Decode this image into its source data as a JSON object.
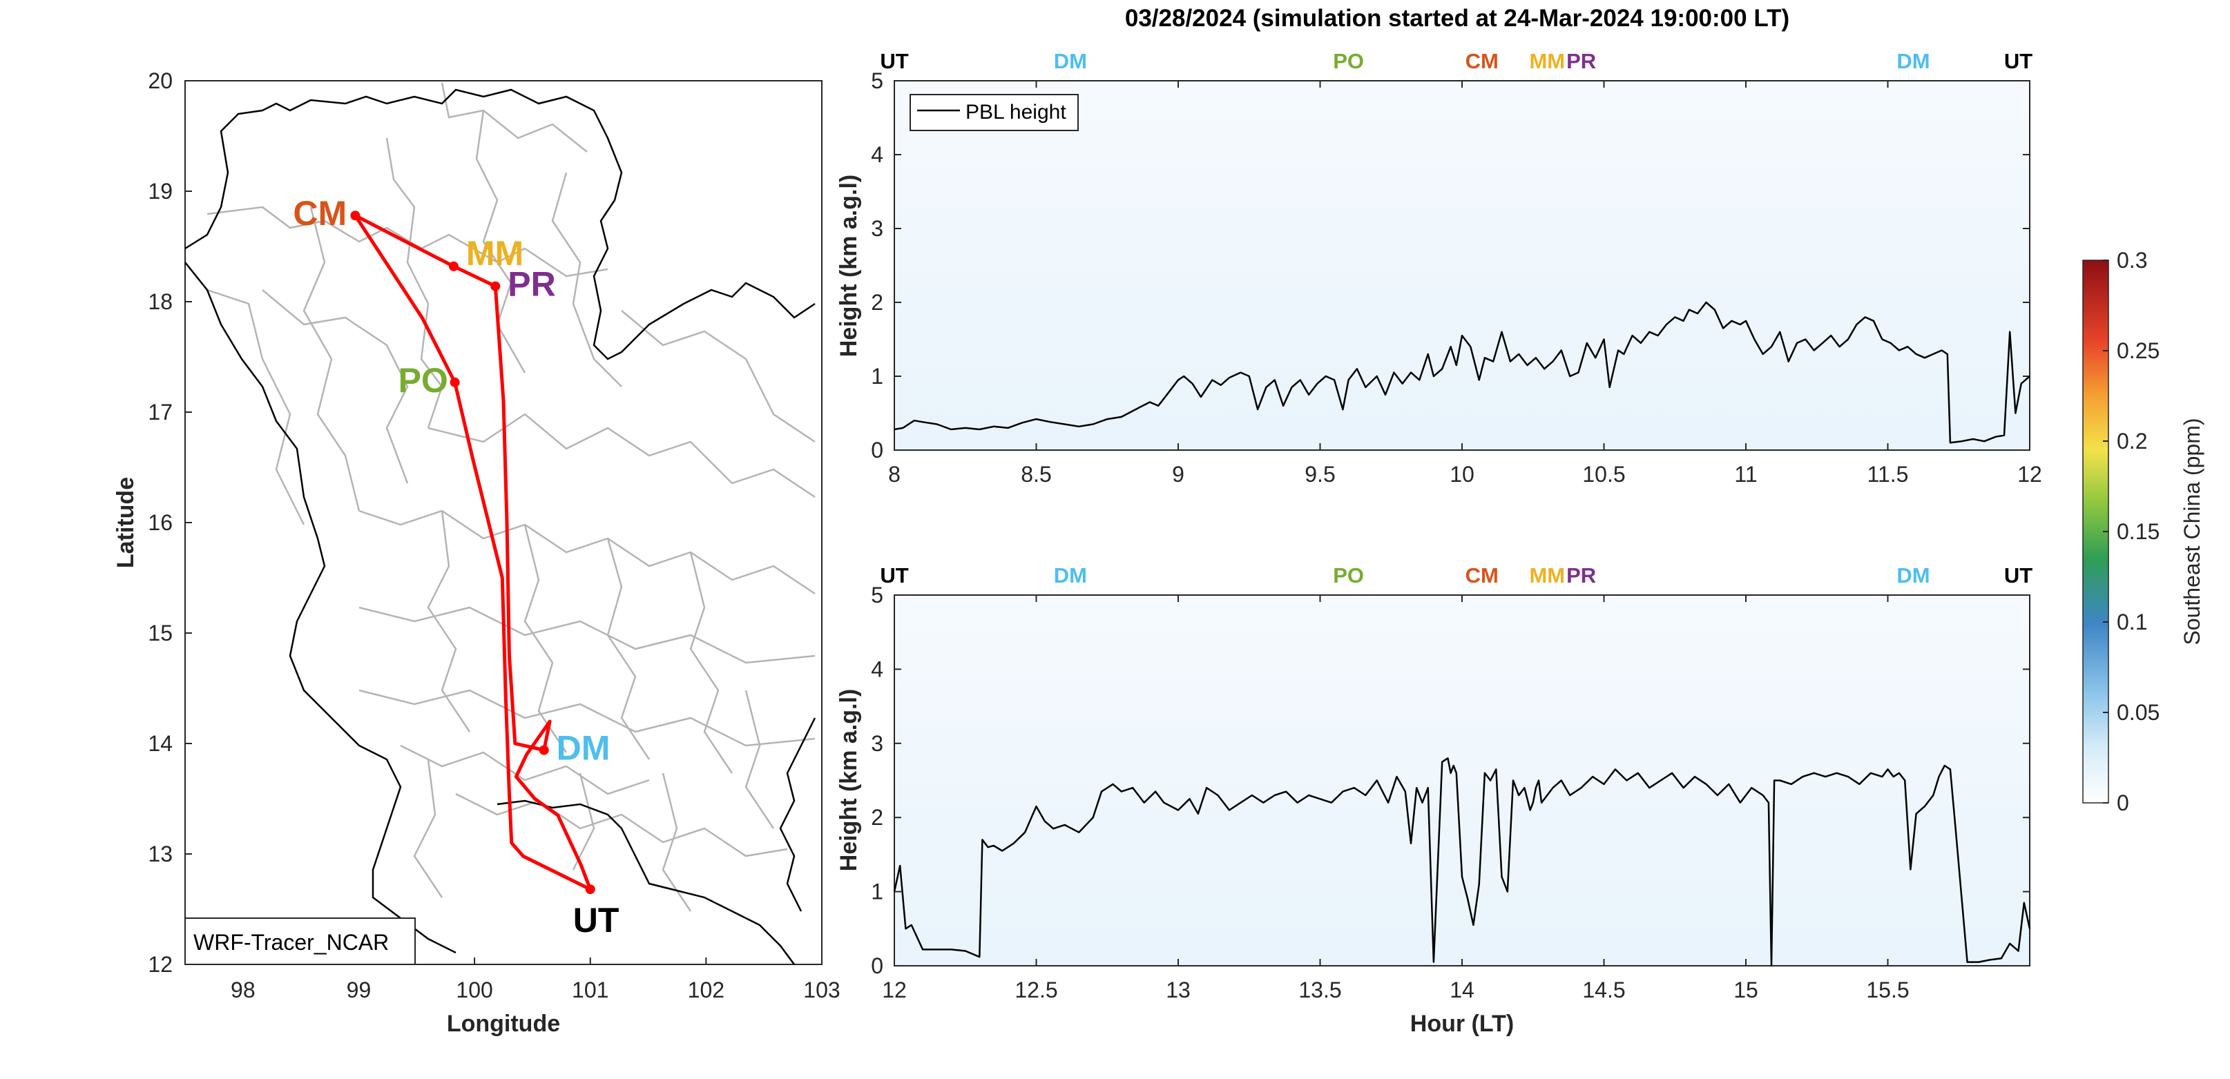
{
  "title": "03/28/2024 (simulation started at 24-Mar-2024 19:00:00 LT)",
  "colors": {
    "UT": "#000000",
    "DM": "#4DBEEE",
    "PO": "#77AC30",
    "CM": "#D95319",
    "MM": "#EDB120",
    "PR": "#7E2F8E",
    "track": "#ff0000",
    "border": "#b4b4b4",
    "coast": "#000000"
  },
  "chart_data": [
    {
      "type": "line",
      "name": "map",
      "xlabel": "Longitude",
      "ylabel": "Latitude",
      "xlim": [
        97.5,
        103
      ],
      "ylim": [
        12,
        20
      ],
      "xticks": [
        "98",
        "99",
        "100",
        "101",
        "102",
        "103"
      ],
      "yticks": [
        "12",
        "13",
        "14",
        "15",
        "16",
        "17",
        "18",
        "19",
        "20"
      ],
      "legend": "WRF-Tracer_NCAR",
      "sites": [
        {
          "label": "CM",
          "lon": 98.97,
          "lat": 18.78
        },
        {
          "label": "MM",
          "lon": 99.82,
          "lat": 18.32
        },
        {
          "label": "PR",
          "lon": 100.18,
          "lat": 18.14
        },
        {
          "label": "PO",
          "lon": 99.83,
          "lat": 17.27
        },
        {
          "label": "DM",
          "lon": 100.6,
          "lat": 13.94
        },
        {
          "label": "UT",
          "lon": 101.0,
          "lat": 12.68
        }
      ],
      "track": [
        {
          "lon": 101.0,
          "lat": 12.68
        },
        {
          "lon": 100.42,
          "lat": 12.98
        },
        {
          "lon": 100.32,
          "lat": 13.1
        },
        {
          "lon": 100.3,
          "lat": 13.55
        },
        {
          "lon": 100.27,
          "lat": 14.4
        },
        {
          "lon": 100.24,
          "lat": 15.5
        },
        {
          "lon": 99.98,
          "lat": 16.6
        },
        {
          "lon": 99.83,
          "lat": 17.27
        },
        {
          "lon": 99.55,
          "lat": 17.85
        },
        {
          "lon": 98.97,
          "lat": 18.78
        },
        {
          "lon": 99.82,
          "lat": 18.32
        },
        {
          "lon": 100.18,
          "lat": 18.14
        },
        {
          "lon": 100.25,
          "lat": 17.1
        },
        {
          "lon": 100.28,
          "lat": 16.0
        },
        {
          "lon": 100.3,
          "lat": 14.8
        },
        {
          "lon": 100.35,
          "lat": 14.0
        },
        {
          "lon": 100.6,
          "lat": 13.94
        },
        {
          "lon": 100.65,
          "lat": 14.2
        },
        {
          "lon": 100.45,
          "lat": 13.9
        },
        {
          "lon": 100.36,
          "lat": 13.7
        },
        {
          "lon": 100.52,
          "lat": 13.5
        },
        {
          "lon": 100.72,
          "lat": 13.35
        },
        {
          "lon": 100.92,
          "lat": 12.9
        },
        {
          "lon": 101.0,
          "lat": 12.68
        }
      ]
    },
    {
      "type": "line",
      "name": "PBL height (8-12 LT)",
      "ylabel": "Height (km a.g.l)",
      "xlim": [
        8,
        12
      ],
      "ylim": [
        0,
        5
      ],
      "xticks": [
        "8",
        "8.5",
        "9",
        "9.5",
        "10",
        "10.5",
        "11",
        "11.5",
        "12"
      ],
      "yticks": [
        "0",
        "1",
        "2",
        "3",
        "4",
        "5"
      ],
      "legend": "PBL height",
      "top_labels": [
        {
          "label": "UT",
          "x": 8.0
        },
        {
          "label": "DM",
          "x": 8.62
        },
        {
          "label": "PO",
          "x": 9.6
        },
        {
          "label": "CM",
          "x": 10.07
        },
        {
          "label": "MM",
          "x": 10.3
        },
        {
          "label": "PR",
          "x": 10.42
        },
        {
          "label": "DM",
          "x": 11.59
        },
        {
          "label": "UT",
          "x": 11.96
        }
      ],
      "series": [
        {
          "x": [
            8.0,
            8.03,
            8.07,
            8.1,
            8.15,
            8.2,
            8.25,
            8.3,
            8.35,
            8.4,
            8.45,
            8.5,
            8.55,
            8.6,
            8.65,
            8.7,
            8.75,
            8.8,
            8.85,
            8.9,
            8.93,
            8.96,
            9.0,
            9.02,
            9.05,
            9.08,
            9.12,
            9.15,
            9.18,
            9.22,
            9.25,
            9.28,
            9.31,
            9.34,
            9.37,
            9.4,
            9.43,
            9.46,
            9.49,
            9.52,
            9.55,
            9.58,
            9.6,
            9.63,
            9.66,
            9.7,
            9.73,
            9.76,
            9.79,
            9.82,
            9.85,
            9.88,
            9.9,
            9.93,
            9.96,
            9.98,
            10.0,
            10.03,
            10.06,
            10.08,
            10.11,
            10.14,
            10.17,
            10.2,
            10.23,
            10.26,
            10.29,
            10.32,
            10.35,
            10.38,
            10.41,
            10.44,
            10.47,
            10.5,
            10.52,
            10.55,
            10.57,
            10.6,
            10.63,
            10.66,
            10.69,
            10.72,
            10.75,
            10.78,
            10.8,
            10.83,
            10.86,
            10.89,
            10.92,
            10.95,
            10.98,
            11.0,
            11.03,
            11.06,
            11.09,
            11.12,
            11.15,
            11.18,
            11.21,
            11.24,
            11.27,
            11.3,
            11.33,
            11.36,
            11.39,
            11.42,
            11.45,
            11.48,
            11.51,
            11.54,
            11.57,
            11.6,
            11.63,
            11.66,
            11.69,
            11.71,
            11.72,
            11.76,
            11.8,
            11.84,
            11.88,
            11.91,
            11.93,
            11.95,
            11.97,
            12.0
          ],
          "values": [
            0.28,
            0.3,
            0.4,
            0.38,
            0.35,
            0.28,
            0.3,
            0.28,
            0.32,
            0.3,
            0.37,
            0.42,
            0.38,
            0.35,
            0.32,
            0.35,
            0.42,
            0.45,
            0.55,
            0.65,
            0.6,
            0.75,
            0.95,
            1.0,
            0.9,
            0.72,
            0.95,
            0.88,
            0.98,
            1.05,
            1.0,
            0.55,
            0.85,
            0.95,
            0.6,
            0.85,
            0.95,
            0.75,
            0.9,
            1.0,
            0.95,
            0.55,
            0.95,
            1.1,
            0.85,
            1.0,
            0.75,
            1.05,
            0.9,
            1.05,
            0.95,
            1.3,
            1.0,
            1.1,
            1.4,
            1.15,
            1.55,
            1.4,
            0.95,
            1.25,
            1.2,
            1.6,
            1.2,
            1.3,
            1.15,
            1.25,
            1.1,
            1.2,
            1.35,
            1.0,
            1.05,
            1.45,
            1.25,
            1.5,
            0.85,
            1.35,
            1.3,
            1.55,
            1.45,
            1.6,
            1.55,
            1.7,
            1.8,
            1.75,
            1.9,
            1.85,
            2.0,
            1.9,
            1.65,
            1.75,
            1.7,
            1.75,
            1.5,
            1.3,
            1.4,
            1.6,
            1.2,
            1.45,
            1.5,
            1.35,
            1.45,
            1.55,
            1.4,
            1.5,
            1.7,
            1.8,
            1.75,
            1.5,
            1.45,
            1.35,
            1.4,
            1.3,
            1.25,
            1.3,
            1.35,
            1.3,
            0.1,
            0.12,
            0.15,
            0.12,
            0.18,
            0.2,
            1.6,
            0.5,
            0.9,
            1.0
          ]
        }
      ]
    },
    {
      "type": "line",
      "name": "PBL height (12-16 LT)",
      "xlabel": "Hour (LT)",
      "ylabel": "Height (km a.g.l)",
      "xlim": [
        12,
        16
      ],
      "ylim": [
        0,
        5
      ],
      "xticks": [
        "12",
        "12.5",
        "13",
        "13.5",
        "14",
        "14.5",
        "15",
        "15.5"
      ],
      "yticks": [
        "0",
        "1",
        "2",
        "3",
        "4",
        "5"
      ],
      "top_labels": [
        {
          "label": "UT",
          "x": 12.0
        },
        {
          "label": "DM",
          "x": 12.62
        },
        {
          "label": "PO",
          "x": 13.6
        },
        {
          "label": "CM",
          "x": 14.07
        },
        {
          "label": "MM",
          "x": 14.3
        },
        {
          "label": "PR",
          "x": 14.42
        },
        {
          "label": "DM",
          "x": 15.59
        },
        {
          "label": "UT",
          "x": 15.96
        }
      ],
      "series": [
        {
          "x": [
            12.0,
            12.02,
            12.04,
            12.06,
            12.1,
            12.15,
            12.2,
            12.25,
            12.3,
            12.31,
            12.33,
            12.35,
            12.38,
            12.42,
            12.46,
            12.5,
            12.53,
            12.56,
            12.6,
            12.65,
            12.7,
            12.73,
            12.77,
            12.8,
            12.84,
            12.88,
            12.92,
            12.95,
            13.0,
            13.04,
            13.07,
            13.1,
            13.14,
            13.18,
            13.22,
            13.26,
            13.3,
            13.34,
            13.38,
            13.42,
            13.46,
            13.5,
            13.54,
            13.58,
            13.62,
            13.66,
            13.7,
            13.74,
            13.77,
            13.8,
            13.82,
            13.84,
            13.86,
            13.88,
            13.9,
            13.93,
            13.95,
            13.96,
            13.97,
            13.98,
            14.0,
            14.02,
            14.04,
            14.06,
            14.08,
            14.1,
            14.12,
            14.14,
            14.16,
            14.18,
            14.2,
            14.22,
            14.24,
            14.25,
            14.26,
            14.27,
            14.28,
            14.3,
            14.32,
            14.35,
            14.38,
            14.42,
            14.46,
            14.5,
            14.54,
            14.58,
            14.62,
            14.66,
            14.7,
            14.74,
            14.78,
            14.82,
            14.86,
            14.9,
            14.94,
            14.98,
            15.02,
            15.06,
            15.08,
            15.09,
            15.1,
            15.12,
            15.16,
            15.2,
            15.24,
            15.28,
            15.32,
            15.36,
            15.4,
            15.44,
            15.48,
            15.5,
            15.52,
            15.54,
            15.56,
            15.58,
            15.6,
            15.63,
            15.66,
            15.68,
            15.7,
            15.72,
            15.74,
            15.78,
            15.82,
            15.86,
            15.9,
            15.93,
            15.96,
            15.98,
            16.0
          ],
          "values": [
            1.0,
            1.35,
            0.5,
            0.55,
            0.22,
            0.22,
            0.22,
            0.2,
            0.12,
            1.7,
            1.6,
            1.62,
            1.55,
            1.65,
            1.8,
            2.15,
            1.95,
            1.85,
            1.9,
            1.8,
            2.0,
            2.35,
            2.45,
            2.35,
            2.4,
            2.2,
            2.35,
            2.2,
            2.1,
            2.25,
            2.05,
            2.4,
            2.3,
            2.1,
            2.2,
            2.3,
            2.2,
            2.3,
            2.35,
            2.2,
            2.3,
            2.25,
            2.2,
            2.35,
            2.4,
            2.3,
            2.5,
            2.2,
            2.55,
            2.35,
            1.65,
            2.4,
            2.2,
            2.4,
            0.05,
            2.75,
            2.8,
            2.6,
            2.7,
            2.6,
            1.2,
            0.9,
            0.55,
            1.1,
            2.6,
            2.5,
            2.65,
            1.2,
            1.0,
            2.5,
            2.3,
            2.4,
            2.1,
            2.2,
            2.4,
            2.5,
            2.2,
            2.3,
            2.4,
            2.5,
            2.3,
            2.4,
            2.55,
            2.45,
            2.65,
            2.5,
            2.6,
            2.4,
            2.5,
            2.6,
            2.4,
            2.55,
            2.45,
            2.3,
            2.45,
            2.2,
            2.4,
            2.3,
            2.2,
            0.0,
            2.5,
            2.5,
            2.45,
            2.55,
            2.6,
            2.55,
            2.6,
            2.55,
            2.45,
            2.6,
            2.55,
            2.65,
            2.55,
            2.6,
            2.5,
            1.3,
            2.05,
            2.15,
            2.3,
            2.55,
            2.7,
            2.65,
            1.8,
            0.05,
            0.05,
            0.08,
            0.1,
            0.3,
            0.2,
            0.85,
            0.5
          ]
        }
      ]
    },
    {
      "type": "heatmap",
      "name": "colorbar",
      "ylabel": "Southeast China (ppm)",
      "ylim": [
        0,
        0.3
      ],
      "yticks": [
        "0",
        "0.05",
        "0.1",
        "0.15",
        "0.2",
        "0.25",
        "0.3"
      ]
    }
  ]
}
